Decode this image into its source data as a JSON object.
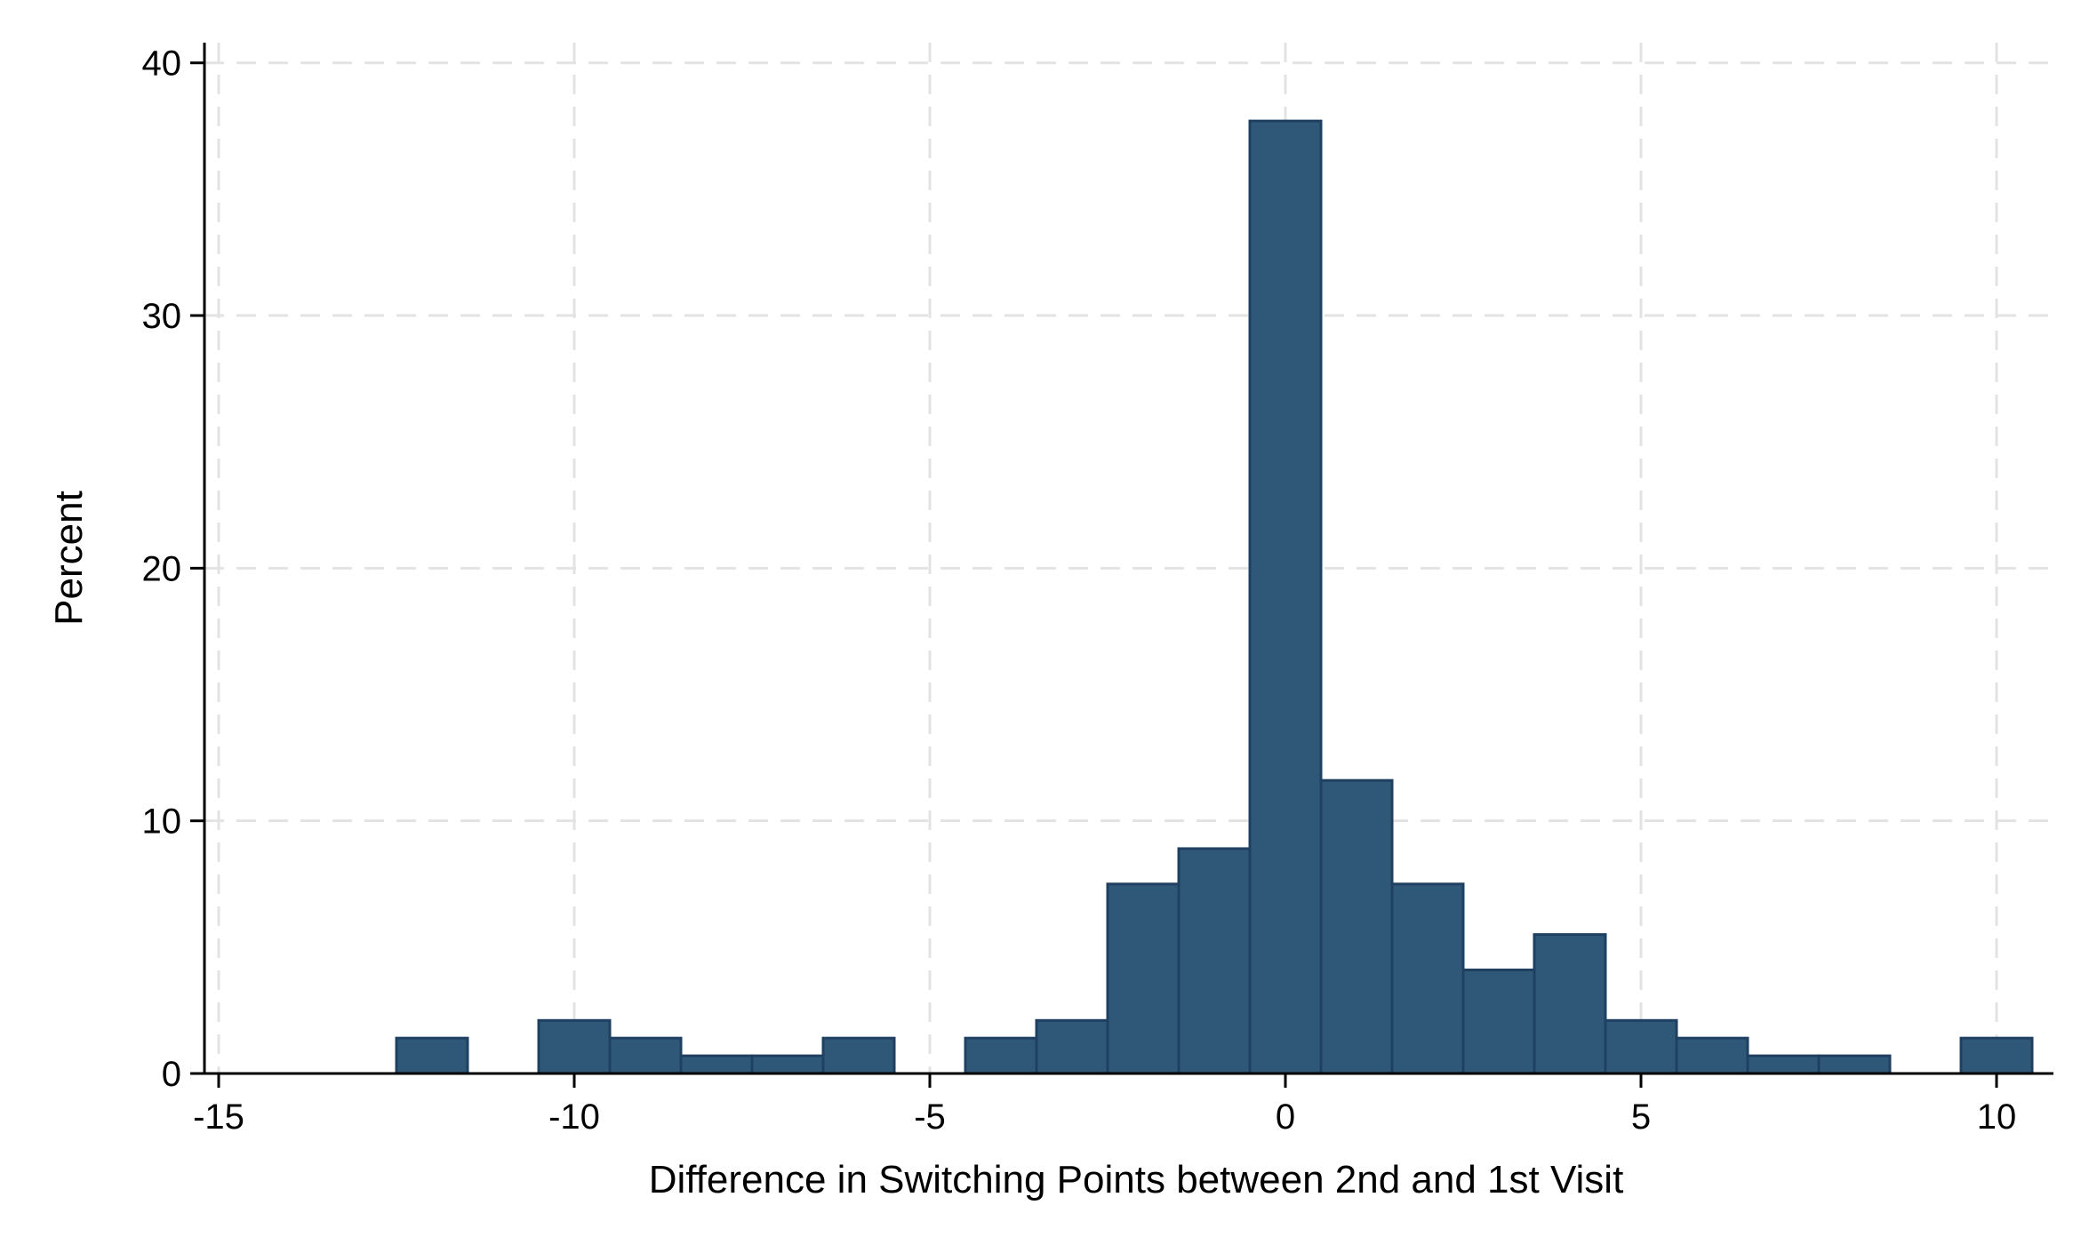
{
  "chart_data": {
    "type": "bar",
    "xlabel": "Difference in Switching Points between 2nd and 1st Visit",
    "ylabel": "Percent",
    "xlim": [
      -15.2,
      10.8
    ],
    "ylim": [
      0,
      40.8
    ],
    "x_ticks": [
      -15,
      -10,
      -5,
      0,
      5,
      10
    ],
    "x_tick_labels": [
      "-15",
      "-10",
      "-5",
      "0",
      "5",
      "10"
    ],
    "y_ticks": [
      0,
      10,
      20,
      30,
      40
    ],
    "y_tick_labels": [
      "0",
      "10",
      "20",
      "30",
      "40"
    ],
    "grid": true,
    "bin_width": 1,
    "bins": [
      {
        "x": -12,
        "value": 1.4
      },
      {
        "x": -10,
        "value": 2.1
      },
      {
        "x": -9,
        "value": 1.4
      },
      {
        "x": -8,
        "value": 0.7
      },
      {
        "x": -7,
        "value": 0.7
      },
      {
        "x": -6,
        "value": 1.4
      },
      {
        "x": -4,
        "value": 1.4
      },
      {
        "x": -3,
        "value": 2.1
      },
      {
        "x": -2,
        "value": 7.5
      },
      {
        "x": -1,
        "value": 8.9
      },
      {
        "x": 0,
        "value": 37.7
      },
      {
        "x": 1,
        "value": 11.6
      },
      {
        "x": 2,
        "value": 7.5
      },
      {
        "x": 3,
        "value": 4.1
      },
      {
        "x": 4,
        "value": 5.5
      },
      {
        "x": 5,
        "value": 2.1
      },
      {
        "x": 6,
        "value": 1.4
      },
      {
        "x": 7,
        "value": 0.7
      },
      {
        "x": 8,
        "value": 0.7
      },
      {
        "x": 10,
        "value": 1.4
      }
    ],
    "colors": {
      "bar_fill": "#2f5778",
      "bar_stroke": "#1f4060",
      "grid": "#e3e3e3",
      "axis": "#000000"
    }
  }
}
